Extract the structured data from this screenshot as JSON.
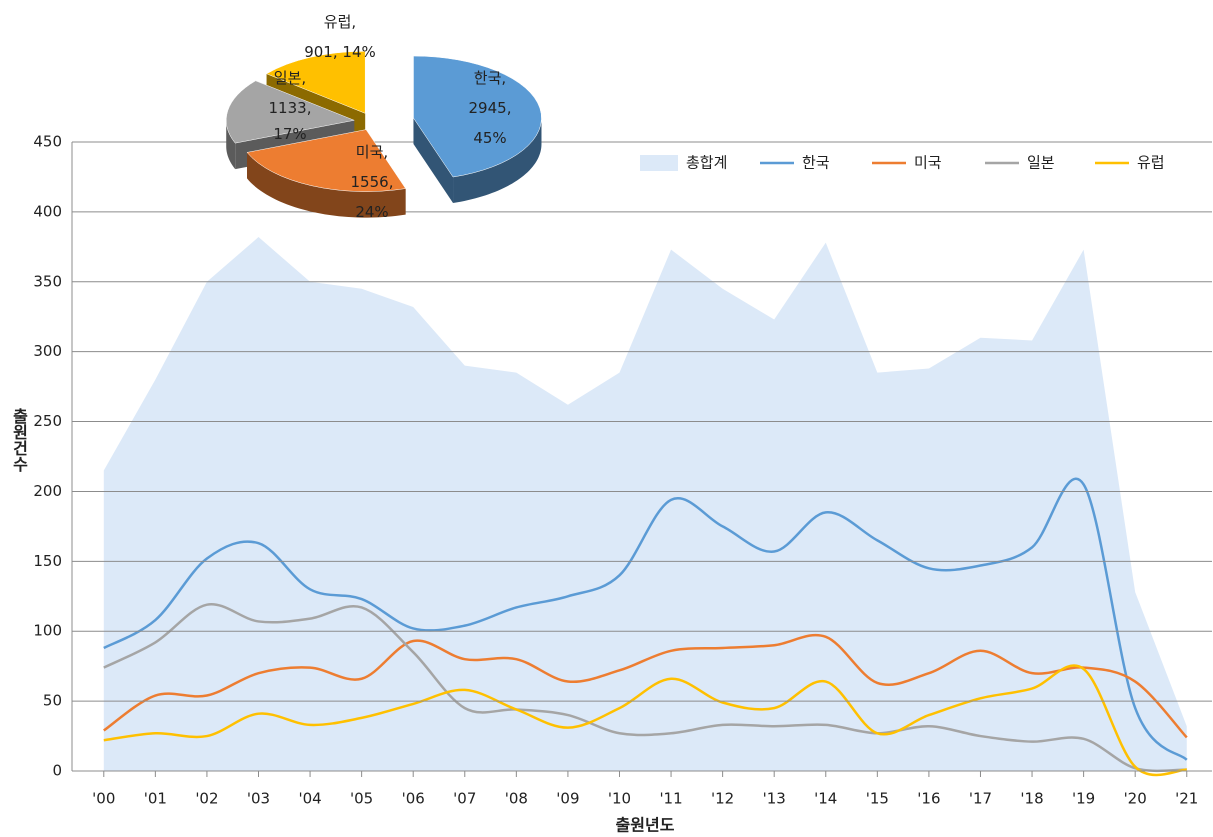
{
  "chart_data": [
    {
      "type": "area_line",
      "ylabel": "출원건수",
      "xlabel": "출원년도",
      "categories": [
        "'00",
        "'01",
        "'02",
        "'03",
        "'04",
        "'05",
        "'06",
        "'07",
        "'08",
        "'09",
        "'10",
        "'11",
        "'12",
        "'13",
        "'14",
        "'15",
        "'16",
        "'17",
        "'18",
        "'19",
        "'20",
        "'21"
      ],
      "ylim": [
        0,
        450
      ],
      "yticks": [
        0,
        50,
        100,
        150,
        200,
        250,
        300,
        350,
        400,
        450
      ],
      "grid": true,
      "legend": "top-right",
      "series": [
        {
          "name": "총합계",
          "kind": "area",
          "color": "#dce9f8",
          "values": [
            215,
            280,
            350,
            382,
            350,
            345,
            332,
            290,
            285,
            262,
            285,
            373,
            345,
            323,
            378,
            285,
            288,
            310,
            308,
            373,
            128,
            32
          ]
        },
        {
          "name": "한국",
          "kind": "line",
          "color": "#5b9bd5",
          "values": [
            88,
            108,
            152,
            163,
            130,
            123,
            102,
            104,
            117,
            125,
            140,
            194,
            175,
            157,
            185,
            165,
            145,
            147,
            160,
            205,
            45,
            8
          ]
        },
        {
          "name": "미국",
          "kind": "line",
          "color": "#ed7d31",
          "values": [
            29,
            54,
            54,
            70,
            74,
            66,
            93,
            80,
            80,
            64,
            72,
            86,
            88,
            90,
            96,
            63,
            70,
            86,
            70,
            74,
            64,
            24
          ]
        },
        {
          "name": "일본",
          "kind": "line",
          "color": "#a5a5a5",
          "values": [
            74,
            92,
            119,
            107,
            109,
            117,
            85,
            45,
            44,
            40,
            27,
            27,
            33,
            32,
            33,
            27,
            32,
            25,
            21,
            23,
            2,
            1
          ]
        },
        {
          "name": "유럽",
          "kind": "line",
          "color": "#ffc000",
          "values": [
            22,
            27,
            25,
            41,
            33,
            38,
            48,
            58,
            44,
            31,
            45,
            66,
            49,
            45,
            64,
            27,
            40,
            52,
            59,
            73,
            3,
            1
          ]
        }
      ]
    },
    {
      "type": "pie3d",
      "categories": [
        "한국",
        "미국",
        "일본",
        "유럽"
      ],
      "counts": [
        2945,
        1556,
        1133,
        901
      ],
      "values": [
        45,
        24,
        17,
        14
      ],
      "value_labels": [
        "45%",
        "24%",
        "17%",
        "14%"
      ],
      "label_separator": ",",
      "colors": [
        "#5b9bd5",
        "#ed7d31",
        "#a5a5a5",
        "#ffc000"
      ]
    }
  ]
}
